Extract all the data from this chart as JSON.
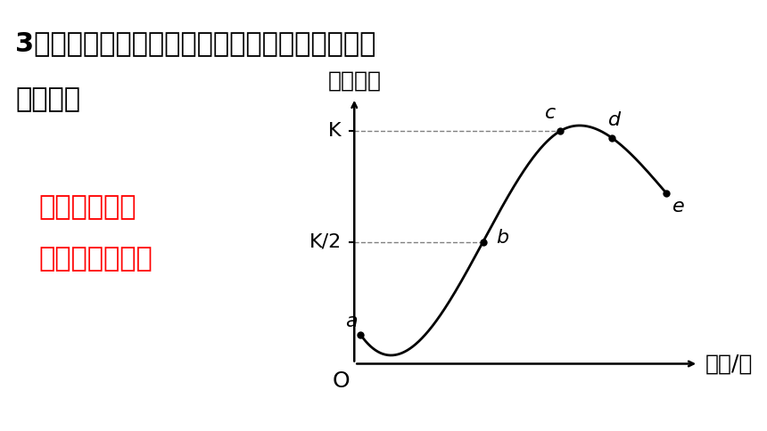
{
  "title_line1": "3、酿酒过程中酵母菌数量变化的情况是怎样的？",
  "title_line2": "为什么？",
  "y_axis_label": "种群数量",
  "x_axis_label": "时间/天",
  "origin_label": "O",
  "answer_text_line1": "酵母菌的数目",
  "answer_text_line2": "先增加后减少。",
  "answer_color": "#FF0000",
  "K_label": "K",
  "K2_label": "K/2",
  "point_labels": [
    "a",
    "b",
    "c",
    "d",
    "e"
  ],
  "background_color": "#FFFFFF",
  "curve_color": "#000000",
  "title_fontsize": 22,
  "answer_fontsize": 22,
  "axis_label_fontsize": 18,
  "tick_label_fontsize": 16,
  "point_label_fontsize": 16
}
